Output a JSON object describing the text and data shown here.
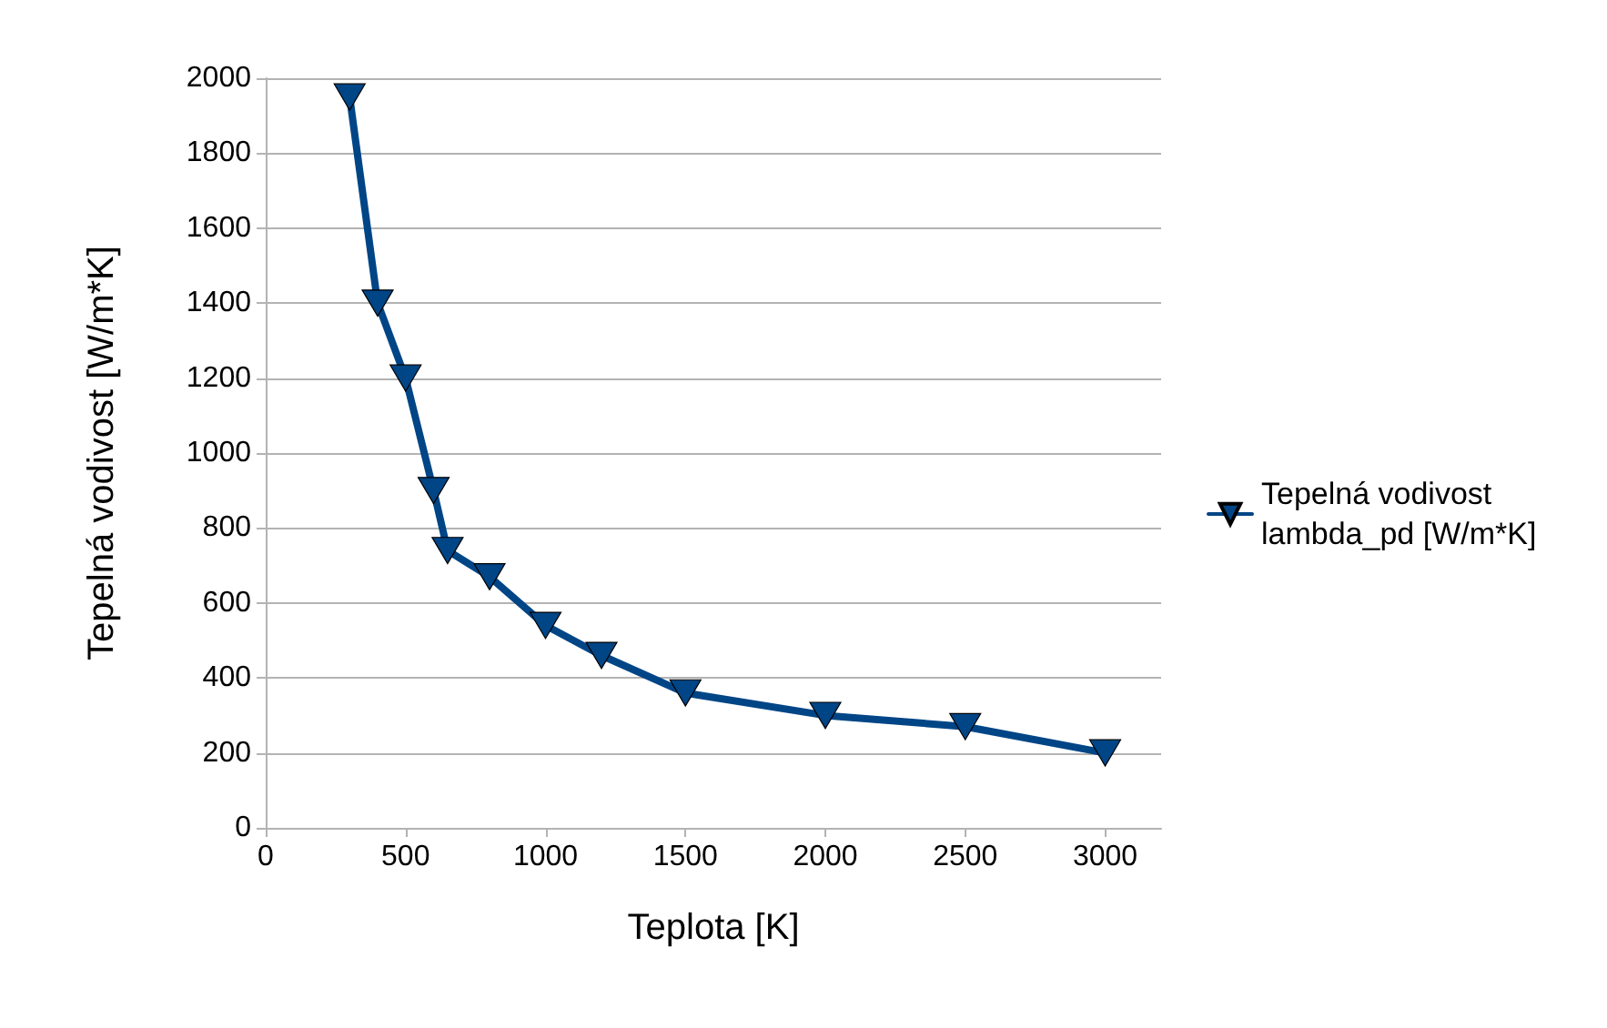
{
  "chart_data": {
    "type": "line",
    "xlabel": "Teplota [K]",
    "ylabel": "Tepelná vodivost [W/m*K]",
    "x": [
      300,
      400,
      500,
      600,
      650,
      800,
      1000,
      1200,
      1500,
      2000,
      2500,
      3000
    ],
    "series": [
      {
        "name": "Tepelná vodivost lambda_pd [W/m*K]",
        "color": "#004586",
        "values": [
          1950,
          1400,
          1200,
          900,
          740,
          670,
          540,
          460,
          360,
          300,
          270,
          200
        ]
      }
    ],
    "xlim": [
      0,
      3200
    ],
    "xticks": [
      0,
      500,
      1000,
      1500,
      2000,
      2500,
      3000
    ],
    "ylim": [
      0,
      2000
    ],
    "yticks": [
      0,
      200,
      400,
      600,
      800,
      1000,
      1200,
      1400,
      1600,
      1800,
      2000
    ],
    "grid": "y",
    "legend": "right",
    "marker": "triangle",
    "line_style": "solid"
  }
}
